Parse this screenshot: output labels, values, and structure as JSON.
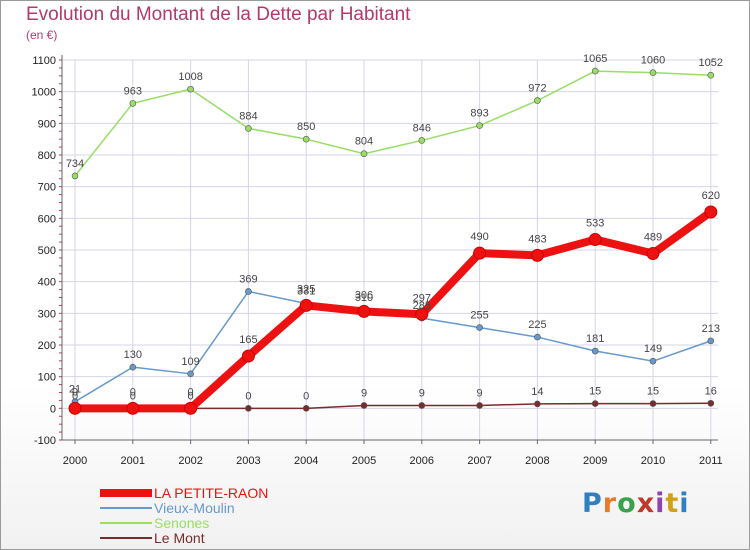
{
  "header": {
    "title": "Evolution du Montant de la Dette par Habitant",
    "unit": "(en €)"
  },
  "logo": {
    "text": "Proxiti"
  },
  "colors": {
    "title": "#b23a6b",
    "grid": "#d4d4e8",
    "axis": "#666666",
    "tick_marks": "#cc3366"
  },
  "chart_data": {
    "type": "line",
    "title": "Evolution du Montant de la Dette par Habitant",
    "ylabel": "(en €)",
    "xlabel": "",
    "x": [
      "2000",
      "2001",
      "2002",
      "2003",
      "2004",
      "2005",
      "2006",
      "2007",
      "2008",
      "2009",
      "2010",
      "2011"
    ],
    "ylim": [
      -100,
      1100
    ],
    "yticks": [
      -100,
      0,
      100,
      200,
      300,
      400,
      500,
      600,
      700,
      800,
      900,
      1000,
      1100
    ],
    "grid": true,
    "legend_position": "bottom-left",
    "series": [
      {
        "name": "LA PETITE-RAON",
        "color": "#ee1111",
        "width": 8,
        "marker_r": 6,
        "values": [
          0,
          0,
          0,
          165,
          325,
          306,
          297,
          490,
          483,
          533,
          489,
          620
        ]
      },
      {
        "name": "Vieux-Moulin",
        "color": "#6699cc",
        "width": 1.5,
        "marker_r": 3,
        "values": [
          21,
          130,
          109,
          369,
          331,
          310,
          285,
          255,
          225,
          181,
          149,
          213
        ]
      },
      {
        "name": "Senones",
        "color": "#99dd66",
        "width": 1.5,
        "marker_r": 3,
        "values": [
          734,
          963,
          1008,
          884,
          850,
          804,
          846,
          893,
          972,
          1065,
          1060,
          1052
        ]
      },
      {
        "name": "Le Mont",
        "color": "#7a2b2b",
        "width": 1.5,
        "marker_r": 3,
        "values": [
          0,
          0,
          0,
          0,
          0,
          9,
          9,
          9,
          14,
          15,
          15,
          16
        ]
      }
    ]
  }
}
